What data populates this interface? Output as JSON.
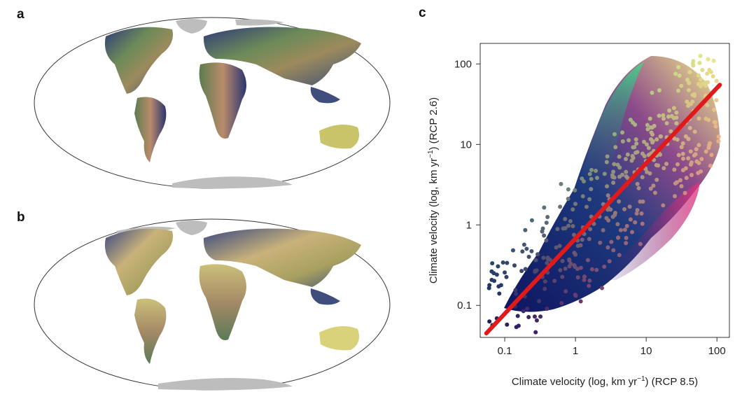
{
  "panels": {
    "a": "a",
    "b": "b",
    "c": "c"
  },
  "colors": {
    "ocean": "#ffffff",
    "antarctica": "#bdbdbd",
    "fit_line": "#e01a1a",
    "low_low": "#10145e",
    "high_low": "#e8337e",
    "low_high": "#3fd88a",
    "high_high": "#f6f08a"
  },
  "chart_data": {
    "type": "scatter",
    "xscale": "log",
    "yscale": "log",
    "xlim": [
      0.045,
      150
    ],
    "ylim": [
      0.04,
      180
    ],
    "xticks": [
      0.1,
      1,
      10,
      100
    ],
    "yticks": [
      0.1,
      1,
      10,
      100
    ],
    "xtick_labels": [
      "0.1",
      "1",
      "10",
      "100"
    ],
    "ytick_labels": [
      "0.1",
      "1",
      "10",
      "100"
    ],
    "xlabel_main": "Climate velocity (log, km yr",
    "xlabel_sup": "−1",
    "xlabel_tail": ") (RCP 8.5)",
    "ylabel_main": "Climate velocity (log, km yr",
    "ylabel_sup": "−1",
    "ylabel_tail": ") (RCP 2.6)",
    "fit_line": {
      "x": [
        0.055,
        110
      ],
      "y": [
        0.045,
        55
      ]
    },
    "point_cloud": "dense cloud of grid-cell points, color encodes bivariate velocity class"
  }
}
